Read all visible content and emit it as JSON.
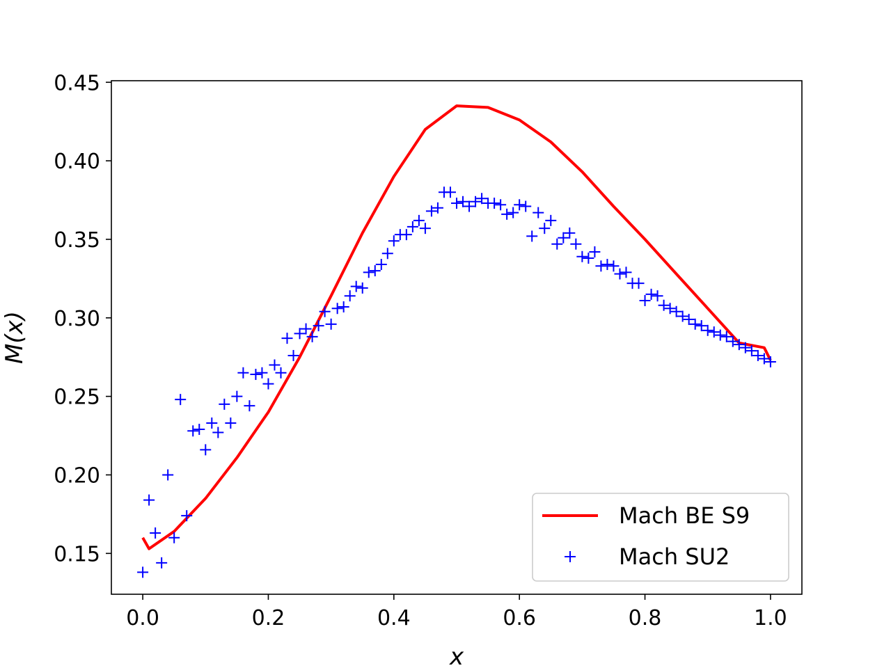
{
  "chart_data": {
    "type": "line",
    "xlabel": "x",
    "ylabel": "M(x)",
    "xlim": [
      -0.05,
      1.05
    ],
    "ylim": [
      0.124,
      0.451
    ],
    "xticks": [
      0.0,
      0.2,
      0.4,
      0.6,
      0.8,
      1.0
    ],
    "xtick_labels": [
      "0.0",
      "0.2",
      "0.4",
      "0.6",
      "0.8",
      "1.0"
    ],
    "yticks": [
      0.15,
      0.2,
      0.25,
      0.3,
      0.35,
      0.4,
      0.45
    ],
    "ytick_labels": [
      "0.15",
      "0.20",
      "0.25",
      "0.30",
      "0.35",
      "0.40",
      "0.45"
    ],
    "grid": false,
    "legend_position": "lower-right",
    "series": [
      {
        "name": "Mach BE S9",
        "style": "line",
        "color": "#ff0000",
        "x": [
          0.0,
          0.01,
          0.05,
          0.1,
          0.15,
          0.2,
          0.25,
          0.3,
          0.35,
          0.4,
          0.45,
          0.5,
          0.55,
          0.6,
          0.65,
          0.7,
          0.75,
          0.8,
          0.85,
          0.9,
          0.95,
          0.99,
          1.0
        ],
        "y": [
          0.16,
          0.153,
          0.164,
          0.185,
          0.211,
          0.24,
          0.275,
          0.314,
          0.354,
          0.39,
          0.42,
          0.435,
          0.434,
          0.426,
          0.412,
          0.393,
          0.371,
          0.35,
          0.328,
          0.306,
          0.284,
          0.281,
          0.273
        ]
      },
      {
        "name": "Mach SU2",
        "style": "scatter",
        "marker": "+",
        "color": "#0000ff",
        "x": [
          0.0,
          0.01,
          0.02,
          0.03,
          0.04,
          0.05,
          0.06,
          0.07,
          0.08,
          0.09,
          0.1,
          0.11,
          0.12,
          0.13,
          0.14,
          0.15,
          0.16,
          0.17,
          0.18,
          0.19,
          0.2,
          0.21,
          0.22,
          0.23,
          0.24,
          0.25,
          0.26,
          0.27,
          0.28,
          0.29,
          0.3,
          0.31,
          0.32,
          0.33,
          0.34,
          0.35,
          0.36,
          0.37,
          0.38,
          0.39,
          0.4,
          0.41,
          0.42,
          0.43,
          0.44,
          0.45,
          0.46,
          0.47,
          0.48,
          0.49,
          0.5,
          0.51,
          0.52,
          0.53,
          0.54,
          0.55,
          0.56,
          0.57,
          0.58,
          0.59,
          0.6,
          0.61,
          0.62,
          0.63,
          0.64,
          0.65,
          0.66,
          0.67,
          0.68,
          0.69,
          0.7,
          0.71,
          0.72,
          0.73,
          0.74,
          0.75,
          0.76,
          0.77,
          0.78,
          0.79,
          0.8,
          0.81,
          0.82,
          0.83,
          0.84,
          0.85,
          0.86,
          0.87,
          0.88,
          0.89,
          0.9,
          0.91,
          0.92,
          0.93,
          0.94,
          0.95,
          0.96,
          0.97,
          0.98,
          0.99,
          1.0
        ],
        "y": [
          0.138,
          0.184,
          0.163,
          0.144,
          0.2,
          0.16,
          0.248,
          0.174,
          0.228,
          0.229,
          0.216,
          0.233,
          0.227,
          0.245,
          0.233,
          0.25,
          0.265,
          0.244,
          0.264,
          0.265,
          0.258,
          0.27,
          0.265,
          0.287,
          0.276,
          0.29,
          0.293,
          0.288,
          0.295,
          0.304,
          0.296,
          0.306,
          0.307,
          0.314,
          0.32,
          0.319,
          0.329,
          0.33,
          0.334,
          0.341,
          0.349,
          0.353,
          0.353,
          0.358,
          0.362,
          0.357,
          0.368,
          0.37,
          0.38,
          0.38,
          0.373,
          0.374,
          0.371,
          0.374,
          0.376,
          0.373,
          0.373,
          0.372,
          0.366,
          0.367,
          0.372,
          0.371,
          0.352,
          0.367,
          0.357,
          0.362,
          0.347,
          0.351,
          0.354,
          0.347,
          0.339,
          0.338,
          0.342,
          0.333,
          0.334,
          0.333,
          0.328,
          0.329,
          0.322,
          0.322,
          0.311,
          0.315,
          0.314,
          0.308,
          0.306,
          0.304,
          0.301,
          0.299,
          0.296,
          0.295,
          0.292,
          0.291,
          0.289,
          0.288,
          0.285,
          0.283,
          0.281,
          0.279,
          0.276,
          0.274,
          0.272
        ]
      }
    ]
  }
}
